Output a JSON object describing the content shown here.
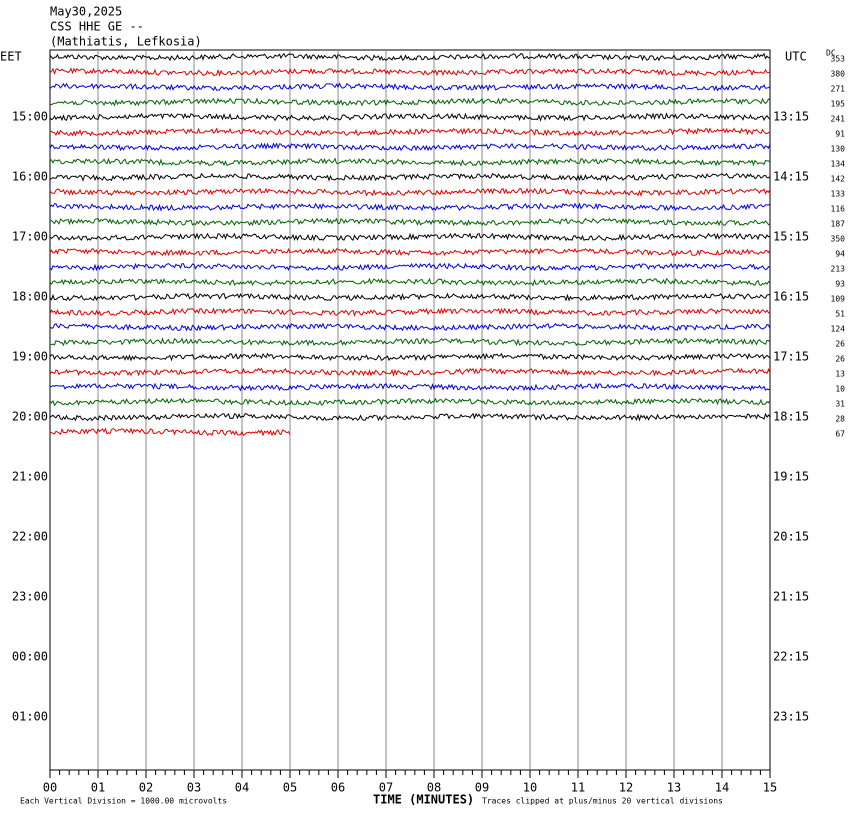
{
  "header": {
    "date": "May30,2025",
    "station": "CSS HHE GE --",
    "location": "(Mathiatis, Lefkosia)"
  },
  "left_zone": "EET",
  "right_zone": "UTC",
  "dc_label": "DC",
  "left_times": [
    "15:00",
    "16:00",
    "17:00",
    "18:00",
    "19:00",
    "20:00",
    "21:00",
    "22:00",
    "23:00",
    "00:00",
    "01:00"
  ],
  "right_times": [
    "13:15",
    "14:15",
    "15:15",
    "16:15",
    "17:15",
    "18:15",
    "19:15",
    "20:15",
    "21:15",
    "22:15",
    "23:15"
  ],
  "dc_values": [
    353,
    380,
    271,
    195,
    241,
    91,
    130,
    134,
    142,
    133,
    116,
    187,
    350,
    94,
    213,
    93,
    109,
    51,
    124,
    26,
    26,
    13,
    10,
    31,
    28,
    67
  ],
  "trace_colors": [
    "#000000",
    "#e00000",
    "#0000e0",
    "#006400"
  ],
  "x_ticks": [
    "00",
    "01",
    "02",
    "03",
    "04",
    "05",
    "06",
    "07",
    "08",
    "09",
    "10",
    "11",
    "12",
    "13",
    "14",
    "15"
  ],
  "x_label": "TIME (MINUTES)",
  "footer_left": "Each Vertical Division = 1000.00 microvolts",
  "footer_right": "Traces clipped at plus/minus 20 vertical divisions"
}
